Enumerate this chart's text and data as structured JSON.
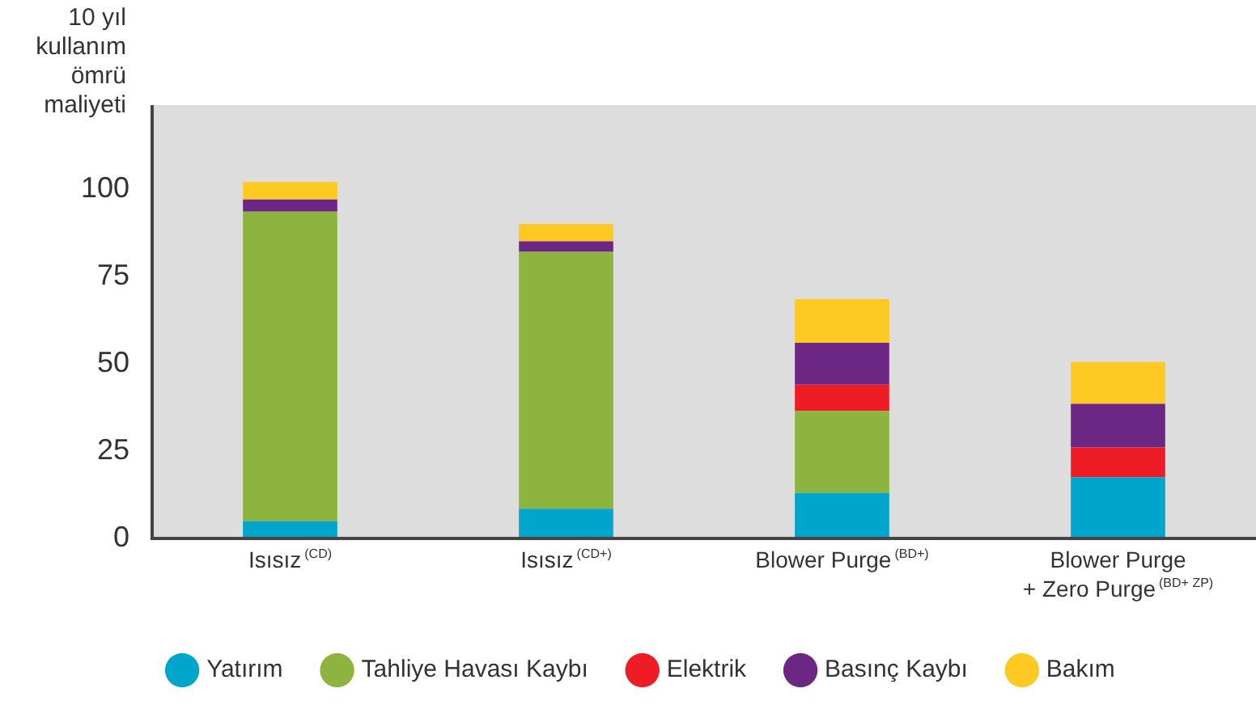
{
  "chart_data": {
    "type": "bar",
    "stacked": true,
    "ylabel": "10 yıl\nkullanım\nömrü\nmaliyeti",
    "categories": [
      "Isısız$^{(CD)}$",
      "Isısız$^{(CD+)}$",
      "Blower Purge$^{(BD+)}$",
      "Blower Purge\n+ Zero Purge$^{(BD+ ZP)}$"
    ],
    "series": [
      {
        "name": "Yatırım",
        "color": "#00a5cb",
        "values": [
          5,
          8.5,
          13,
          17.5
        ]
      },
      {
        "name": "Tahliye Havası Kaybı",
        "color": "#8db43e",
        "values": [
          88.5,
          73.5,
          23.5,
          null
        ]
      },
      {
        "name": "Elektrik",
        "color": "#ee1c25",
        "values": [
          null,
          null,
          7.5,
          8.5
        ]
      },
      {
        "name": "Basınç Kaybı",
        "color": "#6c2785",
        "values": [
          3.5,
          3,
          12,
          12.5
        ]
      },
      {
        "name": "Bakım",
        "color": "#fec923",
        "values": [
          5,
          5,
          12.5,
          12
        ]
      }
    ],
    "ylim": [
      0,
      124
    ],
    "yticks": [
      0,
      25,
      50,
      75,
      100
    ],
    "grid": false,
    "legend": "bottom"
  }
}
